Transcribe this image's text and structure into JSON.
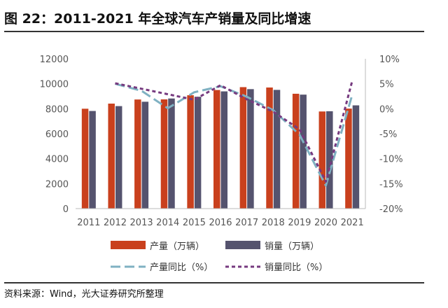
{
  "title": "图 22：2011-2021 年全球汽车产销量及同比增速",
  "source": "资料来源：Wind，光大证券研究所整理",
  "colors": {
    "production": "#c9401d",
    "sales": "#55536e",
    "production_yoy": "#7fb1c2",
    "sales_yoy": "#763a7f"
  },
  "chart_data": {
    "type": "bar",
    "categories": [
      "2011",
      "2012",
      "2013",
      "2014",
      "2015",
      "2016",
      "2017",
      "2018",
      "2019",
      "2020",
      "2021"
    ],
    "series": [
      {
        "name": "产量（万辆）",
        "kind": "bar",
        "axis": "left",
        "values": [
          8000,
          8410,
          8740,
          8750,
          9080,
          9500,
          9730,
          9700,
          9200,
          7780,
          8010
        ]
      },
      {
        "name": "销量（万辆）",
        "kind": "bar",
        "axis": "left",
        "values": [
          7820,
          8210,
          8560,
          8820,
          8960,
          9390,
          9570,
          9510,
          9130,
          7800,
          8270
        ]
      },
      {
        "name": "产量同比（%）",
        "kind": "line",
        "style": "dashed",
        "axis": "right",
        "values": [
          null,
          5.0,
          3.6,
          0.1,
          3.3,
          4.5,
          2.4,
          -0.3,
          -5.2,
          -15.4,
          2.8
        ]
      },
      {
        "name": "销量同比（%）",
        "kind": "line",
        "style": "dotted",
        "axis": "right",
        "values": [
          null,
          5.1,
          4.0,
          2.9,
          1.8,
          4.7,
          1.9,
          -0.6,
          -4.1,
          -14.6,
          5.6
        ]
      }
    ],
    "y_left": {
      "min": 0,
      "max": 12000,
      "ticks": [
        "0",
        "2000",
        "4000",
        "6000",
        "8000",
        "10000",
        "12000"
      ]
    },
    "y_right": {
      "min": -20,
      "max": 10,
      "ticks": [
        "-20%",
        "-15%",
        "-10%",
        "-5%",
        "0%",
        "5%",
        "10%"
      ]
    },
    "grid": false,
    "legend_position": "bottom"
  }
}
